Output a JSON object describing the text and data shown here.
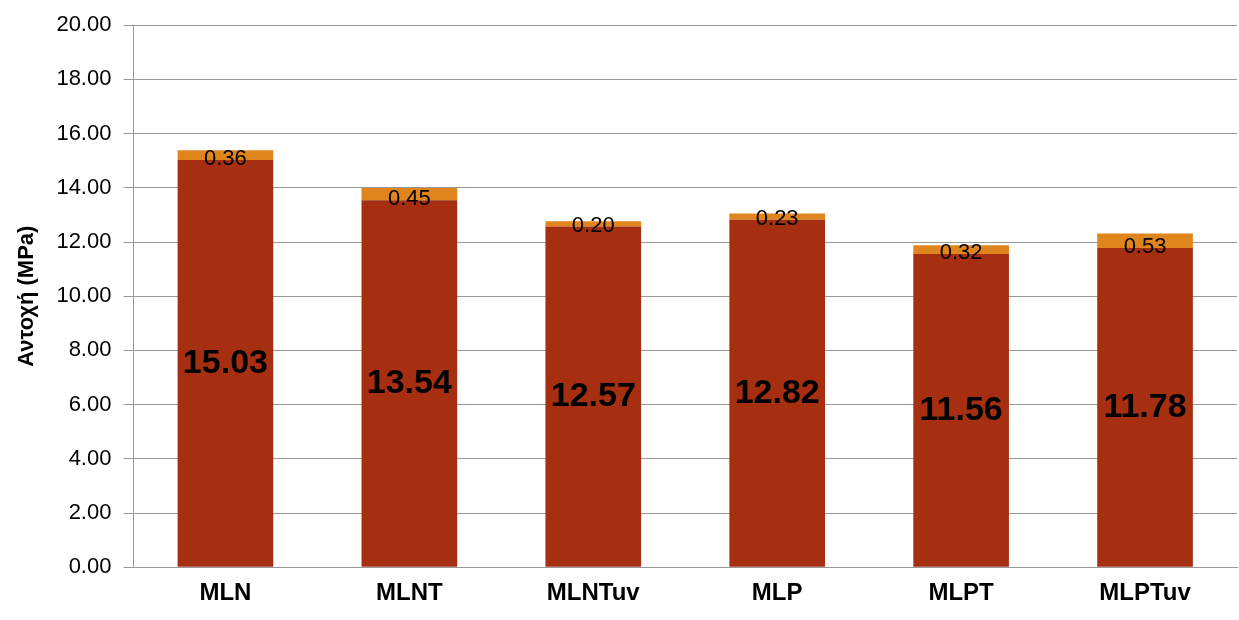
{
  "chart_data": {
    "type": "bar",
    "ylabel": "Αντοχή (MPa)",
    "categories": [
      "MLN",
      "MLNT",
      "MLNTuv",
      "MLP",
      "MLPT",
      "MLPTuv"
    ],
    "stacked": true,
    "grid": "y",
    "legend": false,
    "series": [
      {
        "color": "#a52f10",
        "values": [
          15.03,
          13.54,
          12.57,
          12.82,
          11.56,
          11.78
        ],
        "value_labels": [
          "15.03",
          "13.54",
          "12.57",
          "12.82",
          "11.56",
          "11.78"
        ]
      },
      {
        "color": "#e0841e",
        "values": [
          0.36,
          0.45,
          0.2,
          0.23,
          0.32,
          0.53
        ],
        "value_labels": [
          "0.36",
          "0.45",
          "0.20",
          "0.23",
          "0.32",
          "0.53"
        ]
      }
    ],
    "ylim": [
      0,
      20
    ],
    "yticks": [
      {
        "value": 0,
        "label": "0.00"
      },
      {
        "value": 2,
        "label": "2.00"
      },
      {
        "value": 4,
        "label": "4.00"
      },
      {
        "value": 6,
        "label": "6.00"
      },
      {
        "value": 8,
        "label": "8.00"
      },
      {
        "value": 10,
        "label": "10.00"
      },
      {
        "value": 12,
        "label": "12.00"
      },
      {
        "value": 14,
        "label": "14.00"
      },
      {
        "value": 16,
        "label": "16.00"
      },
      {
        "value": 18,
        "label": "18.00"
      },
      {
        "value": 20,
        "label": "20.00"
      }
    ]
  }
}
